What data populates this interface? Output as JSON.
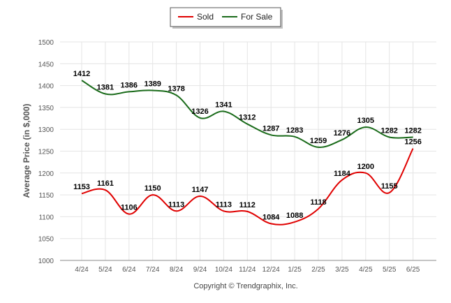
{
  "legend": {
    "items": [
      {
        "label": "Sold",
        "color": "#e00000"
      },
      {
        "label": "For Sale",
        "color": "#1a6b1a"
      }
    ]
  },
  "footer": "Copyright © Trendgraphix, Inc.",
  "chart_data": {
    "type": "line",
    "ylabel": "Average Price (in $,000)",
    "xlabel": "",
    "title": "",
    "ylim": [
      1000,
      1500
    ],
    "yticks": [
      1000,
      1050,
      1100,
      1150,
      1200,
      1250,
      1300,
      1350,
      1400,
      1450,
      1500
    ],
    "grid": true,
    "legend_position": "top-center",
    "categories": [
      "4/24",
      "5/24",
      "6/24",
      "7/24",
      "8/24",
      "9/24",
      "10/24",
      "11/24",
      "12/24",
      "1/25",
      "2/25",
      "3/25",
      "4/25",
      "5/25",
      "6/25"
    ],
    "series": [
      {
        "name": "Sold",
        "color": "#e00000",
        "values": [
          1153,
          1161,
          1106,
          1150,
          1113,
          1147,
          1113,
          1112,
          1084,
          1088,
          1118,
          1184,
          1200,
          1155,
          1256
        ]
      },
      {
        "name": "For Sale",
        "color": "#1a6b1a",
        "values": [
          1412,
          1381,
          1386,
          1389,
          1378,
          1326,
          1341,
          1312,
          1287,
          1283,
          1259,
          1276,
          1305,
          1282,
          1282
        ]
      }
    ]
  }
}
